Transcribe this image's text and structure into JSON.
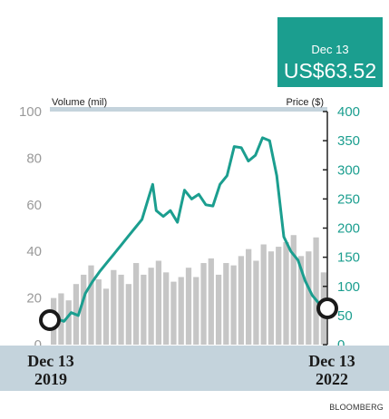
{
  "callout": {
    "date": "Dec 13",
    "price": "US$63.52"
  },
  "start_label": {
    "month_day": "Dec 13",
    "year": "2019"
  },
  "end_label": {
    "month_day": "Dec 13",
    "year": "2022"
  },
  "source": "BLOOMBERG",
  "colors": {
    "price_line": "#1b9e8f",
    "volume_bars": "#c6c6c6",
    "band": "#c4d3dc",
    "callout_bg": "#1b9e8f",
    "left_axis": "#9a9a9a"
  },
  "chart_data": {
    "type": "line+bar",
    "x_start": "2019-12-13",
    "x_end": "2022-12-13",
    "left_axis": {
      "label": "Volume (mil)",
      "range": [
        0,
        100
      ],
      "ticks": [
        "0",
        "20",
        "40",
        "60",
        "80",
        "100"
      ]
    },
    "right_axis": {
      "label": "Price ($)",
      "range": [
        0,
        400
      ],
      "ticks": [
        "0",
        "50",
        "100",
        "150",
        "200",
        "250",
        "300",
        "350",
        "400"
      ]
    },
    "price_series": {
      "name": "Price ($)",
      "x": [
        "2019-12-13",
        "2020-01-10",
        "2020-02-07",
        "2020-03-06",
        "2020-04-03",
        "2020-05-01",
        "2020-05-29",
        "2020-06-26",
        "2020-07-24",
        "2020-08-21",
        "2020-09-18",
        "2020-10-16",
        "2020-11-13",
        "2020-12-11",
        "2021-01-08",
        "2021-01-22",
        "2021-02-05",
        "2021-03-05",
        "2021-04-02",
        "2021-04-30",
        "2021-05-28",
        "2021-06-25",
        "2021-07-23",
        "2021-08-20",
        "2021-09-17",
        "2021-10-15",
        "2021-11-12",
        "2021-12-10",
        "2022-01-07",
        "2022-02-04",
        "2022-03-04",
        "2022-04-01",
        "2022-04-29",
        "2022-05-27",
        "2022-06-24",
        "2022-07-22",
        "2022-08-19",
        "2022-09-16",
        "2022-10-14",
        "2022-11-11",
        "2022-12-13"
      ],
      "y": [
        42,
        44,
        40,
        55,
        50,
        88,
        108,
        125,
        140,
        155,
        170,
        185,
        200,
        215,
        255,
        275,
        230,
        220,
        230,
        210,
        265,
        250,
        258,
        240,
        238,
        275,
        290,
        340,
        338,
        315,
        325,
        355,
        350,
        290,
        185,
        160,
        145,
        110,
        85,
        70,
        63.52
      ]
    },
    "volume_series": {
      "name": "Volume (mil)",
      "x": [
        "2019-12",
        "2020-01",
        "2020-02",
        "2020-03",
        "2020-04",
        "2020-05",
        "2020-06",
        "2020-07",
        "2020-08",
        "2020-09",
        "2020-10",
        "2020-11",
        "2020-12",
        "2021-01",
        "2021-02",
        "2021-03",
        "2021-04",
        "2021-05",
        "2021-06",
        "2021-07",
        "2021-08",
        "2021-09",
        "2021-10",
        "2021-11",
        "2021-12",
        "2022-01",
        "2022-02",
        "2022-03",
        "2022-04",
        "2022-05",
        "2022-06",
        "2022-07",
        "2022-08",
        "2022-09",
        "2022-10",
        "2022-11",
        "2022-12"
      ],
      "y": [
        20,
        22,
        19,
        26,
        30,
        34,
        28,
        24,
        32,
        30,
        26,
        35,
        30,
        33,
        36,
        31,
        27,
        29,
        33,
        29,
        35,
        37,
        30,
        35,
        34,
        38,
        41,
        36,
        43,
        40,
        42,
        44,
        47,
        38,
        40,
        46,
        31
      ]
    }
  }
}
